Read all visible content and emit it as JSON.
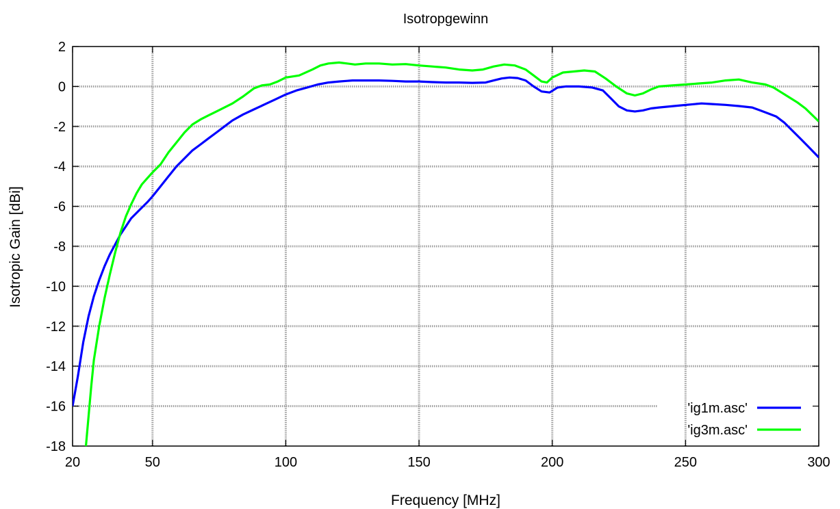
{
  "chart_data": {
    "type": "line",
    "title": "Isotropgewinn",
    "xlabel": "Frequency [MHz]",
    "ylabel": "Isotropic Gain [dBi]",
    "xlim": [
      20,
      300
    ],
    "ylim": [
      -18,
      2
    ],
    "xticks": [
      20,
      50,
      100,
      150,
      200,
      250,
      300
    ],
    "yticks": [
      2,
      0,
      -2,
      -4,
      -6,
      -8,
      -10,
      -12,
      -14,
      -16,
      -18
    ],
    "grid": true,
    "legend_position": "bottom-right",
    "series": [
      {
        "name": "'ig1m.asc'",
        "color": "#0000ff",
        "points": [
          [
            20,
            -16.0
          ],
          [
            22,
            -14.5
          ],
          [
            24,
            -12.8
          ],
          [
            26,
            -11.5
          ],
          [
            28,
            -10.5
          ],
          [
            30,
            -9.7
          ],
          [
            32,
            -9.0
          ],
          [
            34,
            -8.4
          ],
          [
            36,
            -7.9
          ],
          [
            38,
            -7.4
          ],
          [
            40,
            -7.0
          ],
          [
            42,
            -6.6
          ],
          [
            45,
            -6.2
          ],
          [
            48,
            -5.8
          ],
          [
            50,
            -5.5
          ],
          [
            53,
            -5.0
          ],
          [
            56,
            -4.5
          ],
          [
            59,
            -4.0
          ],
          [
            62,
            -3.6
          ],
          [
            65,
            -3.2
          ],
          [
            68,
            -2.9
          ],
          [
            71,
            -2.6
          ],
          [
            74,
            -2.3
          ],
          [
            77,
            -2.0
          ],
          [
            80,
            -1.7
          ],
          [
            84,
            -1.4
          ],
          [
            88,
            -1.15
          ],
          [
            92,
            -0.9
          ],
          [
            96,
            -0.65
          ],
          [
            100,
            -0.4
          ],
          [
            104,
            -0.2
          ],
          [
            108,
            -0.05
          ],
          [
            112,
            0.1
          ],
          [
            116,
            0.2
          ],
          [
            120,
            0.25
          ],
          [
            125,
            0.3
          ],
          [
            130,
            0.3
          ],
          [
            135,
            0.3
          ],
          [
            140,
            0.28
          ],
          [
            145,
            0.25
          ],
          [
            150,
            0.25
          ],
          [
            155,
            0.22
          ],
          [
            160,
            0.2
          ],
          [
            165,
            0.2
          ],
          [
            170,
            0.18
          ],
          [
            175,
            0.2
          ],
          [
            178,
            0.3
          ],
          [
            181,
            0.4
          ],
          [
            184,
            0.45
          ],
          [
            187,
            0.42
          ],
          [
            190,
            0.3
          ],
          [
            193,
            0.0
          ],
          [
            196,
            -0.25
          ],
          [
            199,
            -0.3
          ],
          [
            202,
            -0.05
          ],
          [
            205,
            0.0
          ],
          [
            210,
            0.0
          ],
          [
            215,
            -0.05
          ],
          [
            219,
            -0.2
          ],
          [
            222,
            -0.6
          ],
          [
            225,
            -1.0
          ],
          [
            228,
            -1.2
          ],
          [
            231,
            -1.25
          ],
          [
            234,
            -1.2
          ],
          [
            237,
            -1.1
          ],
          [
            240,
            -1.05
          ],
          [
            244,
            -1.0
          ],
          [
            248,
            -0.95
          ],
          [
            252,
            -0.9
          ],
          [
            256,
            -0.85
          ],
          [
            260,
            -0.88
          ],
          [
            265,
            -0.92
          ],
          [
            270,
            -0.98
          ],
          [
            275,
            -1.05
          ],
          [
            278,
            -1.2
          ],
          [
            281,
            -1.35
          ],
          [
            284,
            -1.5
          ],
          [
            287,
            -1.8
          ],
          [
            290,
            -2.2
          ],
          [
            293,
            -2.6
          ],
          [
            296,
            -3.0
          ],
          [
            300,
            -3.55
          ]
        ]
      },
      {
        "name": "'ig3m.asc'",
        "color": "#00ff00",
        "points": [
          [
            25,
            -18.0
          ],
          [
            26,
            -16.5
          ],
          [
            27,
            -15.0
          ],
          [
            28,
            -13.7
          ],
          [
            30,
            -12.0
          ],
          [
            32,
            -10.6
          ],
          [
            34,
            -9.4
          ],
          [
            36,
            -8.3
          ],
          [
            38,
            -7.3
          ],
          [
            40,
            -6.5
          ],
          [
            42,
            -5.9
          ],
          [
            44,
            -5.35
          ],
          [
            46,
            -4.9
          ],
          [
            48,
            -4.6
          ],
          [
            50,
            -4.3
          ],
          [
            53,
            -3.9
          ],
          [
            56,
            -3.3
          ],
          [
            59,
            -2.8
          ],
          [
            62,
            -2.3
          ],
          [
            65,
            -1.9
          ],
          [
            68,
            -1.65
          ],
          [
            71,
            -1.45
          ],
          [
            74,
            -1.25
          ],
          [
            77,
            -1.05
          ],
          [
            80,
            -0.85
          ],
          [
            84,
            -0.5
          ],
          [
            88,
            -0.1
          ],
          [
            91,
            0.05
          ],
          [
            94,
            0.1
          ],
          [
            97,
            0.25
          ],
          [
            100,
            0.45
          ],
          [
            105,
            0.55
          ],
          [
            110,
            0.85
          ],
          [
            113,
            1.05
          ],
          [
            116,
            1.15
          ],
          [
            120,
            1.2
          ],
          [
            123,
            1.15
          ],
          [
            126,
            1.1
          ],
          [
            130,
            1.15
          ],
          [
            135,
            1.15
          ],
          [
            140,
            1.1
          ],
          [
            145,
            1.12
          ],
          [
            150,
            1.05
          ],
          [
            155,
            1.0
          ],
          [
            160,
            0.95
          ],
          [
            165,
            0.85
          ],
          [
            170,
            0.8
          ],
          [
            174,
            0.85
          ],
          [
            178,
            1.0
          ],
          [
            182,
            1.1
          ],
          [
            186,
            1.05
          ],
          [
            190,
            0.85
          ],
          [
            193,
            0.55
          ],
          [
            196,
            0.25
          ],
          [
            198,
            0.2
          ],
          [
            200,
            0.45
          ],
          [
            204,
            0.7
          ],
          [
            208,
            0.75
          ],
          [
            212,
            0.8
          ],
          [
            216,
            0.75
          ],
          [
            220,
            0.4
          ],
          [
            224,
            0.0
          ],
          [
            228,
            -0.35
          ],
          [
            231,
            -0.45
          ],
          [
            234,
            -0.35
          ],
          [
            237,
            -0.15
          ],
          [
            240,
            0.0
          ],
          [
            245,
            0.05
          ],
          [
            250,
            0.1
          ],
          [
            255,
            0.15
          ],
          [
            260,
            0.2
          ],
          [
            265,
            0.3
          ],
          [
            270,
            0.35
          ],
          [
            275,
            0.2
          ],
          [
            280,
            0.1
          ],
          [
            283,
            -0.05
          ],
          [
            286,
            -0.3
          ],
          [
            289,
            -0.55
          ],
          [
            292,
            -0.8
          ],
          [
            295,
            -1.1
          ],
          [
            300,
            -1.75
          ]
        ]
      }
    ]
  }
}
